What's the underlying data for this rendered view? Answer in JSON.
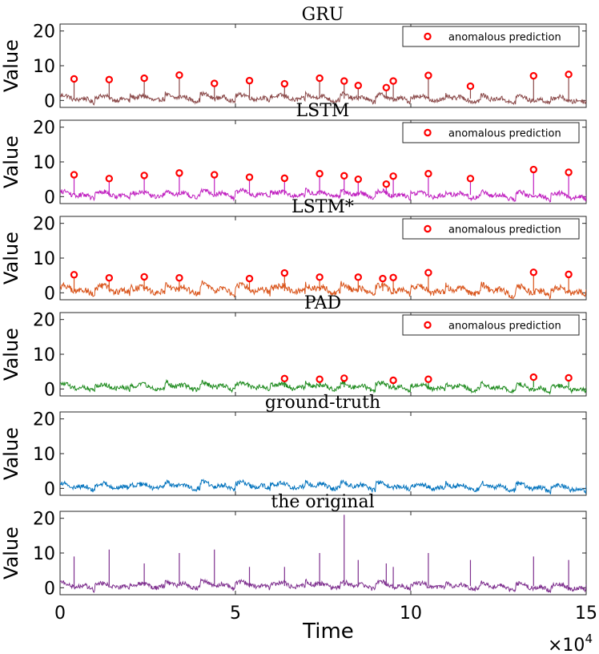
{
  "chart_data": {
    "type": "line",
    "xlabel": "Time",
    "x_multiplier": "×10^4",
    "xlim": [
      0,
      150000
    ],
    "x_ticks": [
      0,
      50000,
      100000,
      150000
    ],
    "x_tick_labels": [
      "0",
      "5",
      "10",
      "15"
    ],
    "x_multiplier_base": "×10",
    "x_multiplier_exp": "4",
    "ylabel": "Value",
    "ylim": [
      -2,
      22
    ],
    "y_ticks": [
      0,
      10,
      20
    ],
    "y_tick_labels": [
      "0",
      "10",
      "20"
    ],
    "legend_label": "anomalous prediction",
    "legend_position": "top-right",
    "panels": [
      {
        "title": "GRU",
        "color": "#8B4A4A",
        "baseline_amplitude": 1.2,
        "anomalies": {
          "x": [
            4000,
            14000,
            24000,
            34000,
            44000,
            54000,
            64000,
            74000,
            81000,
            85000,
            93000,
            95000,
            105000,
            117000,
            135000,
            145000
          ],
          "y": [
            6.2,
            6.0,
            6.4,
            7.3,
            4.9,
            5.7,
            4.8,
            6.4,
            5.6,
            4.3,
            3.7,
            5.6,
            7.2,
            4.1,
            7.1,
            7.5
          ]
        }
      },
      {
        "title": "LSTM",
        "color": "#C020C0",
        "baseline_amplitude": 1.2,
        "anomalies": {
          "x": [
            4000,
            14000,
            24000,
            34000,
            44000,
            54000,
            64000,
            74000,
            81000,
            85000,
            93000,
            95000,
            105000,
            117000,
            135000,
            145000
          ],
          "y": [
            6.3,
            5.2,
            6.1,
            6.8,
            6.3,
            5.6,
            5.3,
            6.6,
            6.0,
            5.0,
            3.6,
            5.9,
            6.6,
            5.2,
            7.8,
            7.0
          ]
        }
      },
      {
        "title": "LSTM*",
        "color": "#D95319",
        "baseline_amplitude": 1.6,
        "anomalies": {
          "x": [
            4000,
            14000,
            24000,
            34000,
            54000,
            64000,
            74000,
            85000,
            92000,
            95000,
            105000,
            135000,
            145000
          ],
          "y": [
            5.2,
            4.3,
            4.6,
            4.3,
            4.1,
            5.7,
            4.5,
            4.5,
            4.1,
            4.4,
            5.8,
            5.9,
            5.3
          ]
        }
      },
      {
        "title": "PAD",
        "color": "#1E8B1E",
        "baseline_amplitude": 1.2,
        "anomalies": {
          "x": [
            64000,
            74000,
            81000,
            95000,
            105000,
            135000,
            145000
          ],
          "y": [
            3.0,
            2.8,
            3.1,
            2.5,
            2.8,
            3.4,
            3.2
          ]
        }
      },
      {
        "title": "ground-truth",
        "color": "#0072BD",
        "baseline_amplitude": 1.2,
        "anomalies": null
      },
      {
        "title": "the original",
        "color": "#7E2F8E",
        "baseline_amplitude": 1.2,
        "anomalies": null,
        "spikes": {
          "x": [
            4000,
            14000,
            24000,
            34000,
            44000,
            54000,
            64000,
            74000,
            81000,
            85000,
            93000,
            95000,
            105000,
            117000,
            135000,
            145000
          ],
          "y": [
            9,
            11,
            7,
            10,
            11,
            6,
            6,
            10,
            21,
            8,
            7,
            6,
            10,
            8,
            9,
            8
          ]
        }
      }
    ]
  }
}
